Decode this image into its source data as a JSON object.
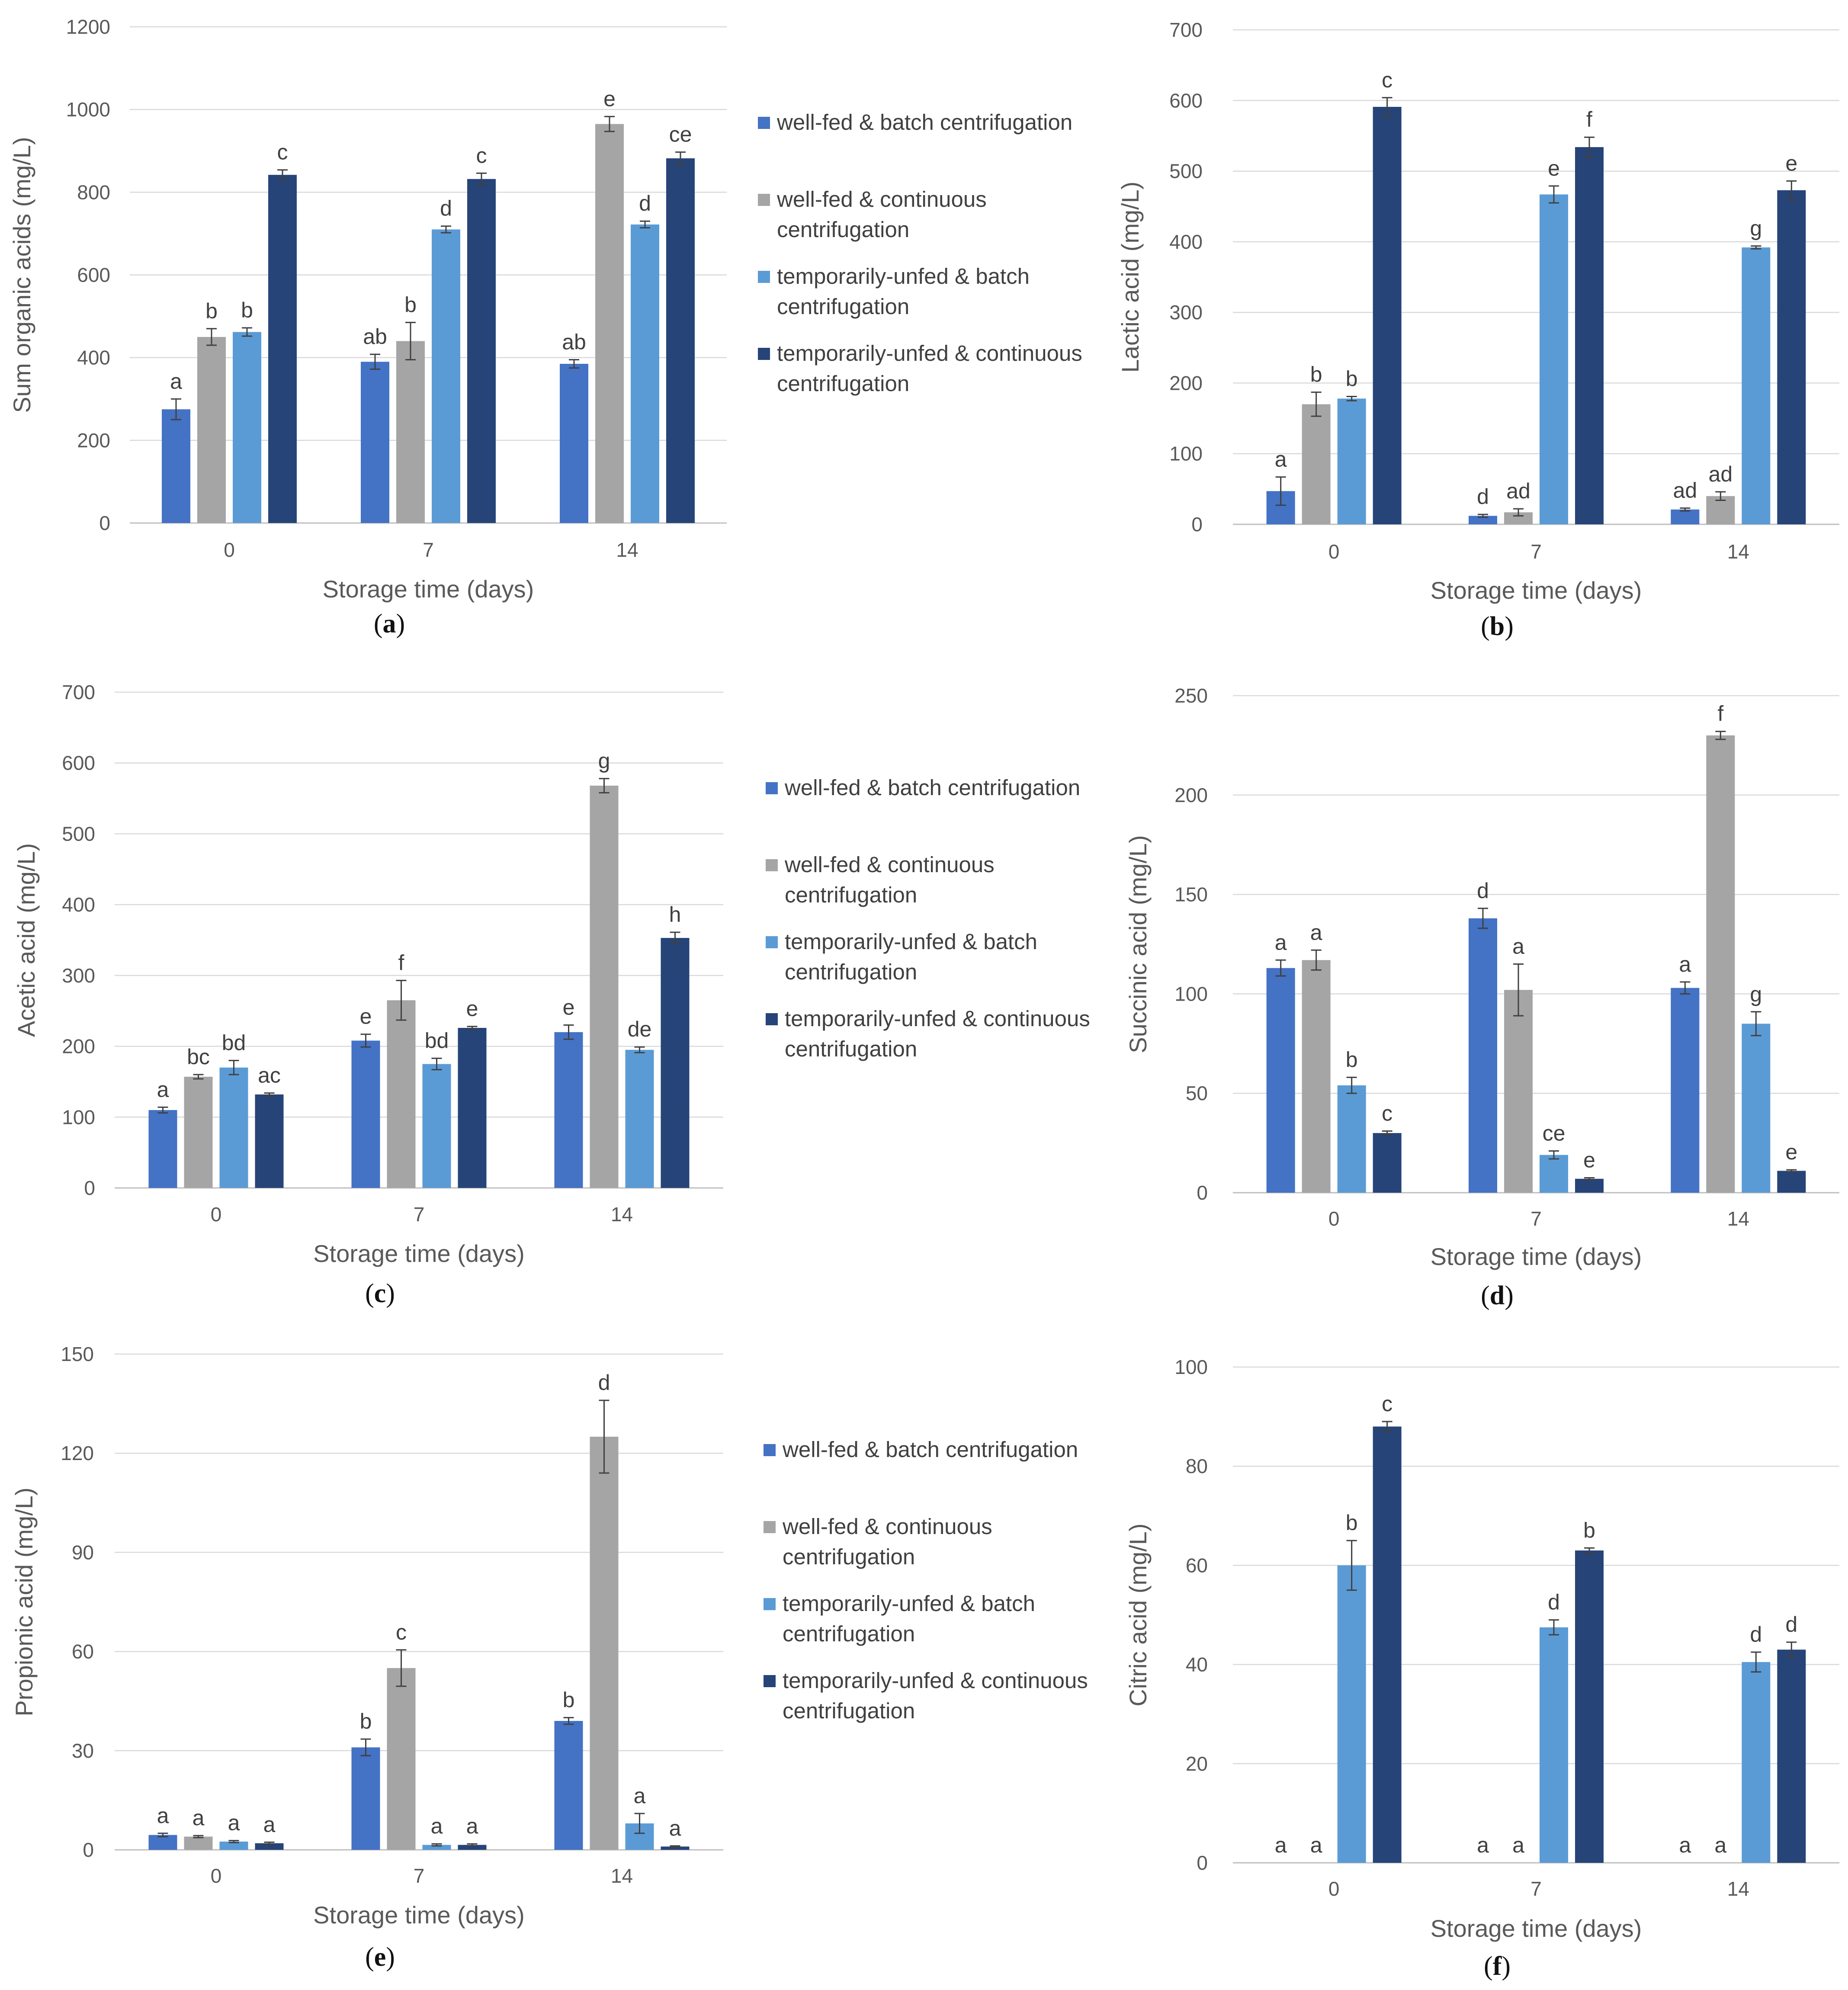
{
  "colors": {
    "well_fed_batch": "#4472C4",
    "well_fed_continuous": "#A5A5A5",
    "temp_unfed_batch": "#5B9BD5",
    "temp_unfed_continuous": "#264478",
    "grid": "#D9D9D9",
    "axis": "#BFBFBF",
    "error_bar": "#404040"
  },
  "chart_data": [
    {
      "id": "a",
      "type": "bar",
      "panel_label": "a",
      "categories": [
        "0",
        "7",
        "14"
      ],
      "xlabel": "Storage time (days)",
      "ylabel": "Sum organic  acids (mg/L)",
      "ylim": [
        0,
        1200
      ],
      "yticks": [
        0,
        200,
        400,
        600,
        800,
        1000,
        1200
      ],
      "series": [
        {
          "name": "well-fed & batch centrifugation",
          "values": [
            275,
            390,
            385
          ],
          "errors": [
            25,
            18,
            10
          ],
          "letters": [
            "a",
            "ab",
            "ab"
          ]
        },
        {
          "name": "well-fed & continuous centrifugation",
          "values": [
            450,
            440,
            965
          ],
          "errors": [
            20,
            45,
            18
          ],
          "letters": [
            "b",
            "b",
            "e"
          ]
        },
        {
          "name": "temporarily-unfed & batch centrifugation",
          "values": [
            462,
            710,
            722
          ],
          "errors": [
            10,
            8,
            8
          ],
          "letters": [
            "b",
            "d",
            "d"
          ]
        },
        {
          "name": "temporarily-unfed & continuous centrifugation",
          "values": [
            842,
            832,
            882
          ],
          "errors": [
            12,
            14,
            15
          ],
          "letters": [
            "c",
            "c",
            "ce"
          ]
        }
      ]
    },
    {
      "id": "b",
      "type": "bar",
      "panel_label": "b",
      "categories": [
        "0",
        "7",
        "14"
      ],
      "xlabel": "Storage time (days)",
      "ylabel": "Lactic acid (mg/L)",
      "ylim": [
        0,
        700
      ],
      "yticks": [
        0,
        100,
        200,
        300,
        400,
        500,
        600,
        700
      ],
      "series": [
        {
          "name": "well-fed & batch centrifugation",
          "values": [
            47,
            12,
            21
          ],
          "errors": [
            20,
            2,
            2
          ],
          "letters": [
            "a",
            "d",
            "ad"
          ]
        },
        {
          "name": "well-fed & continuous centrifugation",
          "values": [
            170,
            17,
            40
          ],
          "errors": [
            17,
            5,
            6
          ],
          "letters": [
            "b",
            "ad",
            "ad"
          ]
        },
        {
          "name": "temporarily-unfed & batch centrifugation",
          "values": [
            178,
            467,
            392
          ],
          "errors": [
            3,
            12,
            2
          ],
          "letters": [
            "b",
            "e",
            "g"
          ]
        },
        {
          "name": "temporarily-unfed & continuous centrifugation",
          "values": [
            591,
            534,
            473
          ],
          "errors": [
            13,
            14,
            13
          ],
          "letters": [
            "c",
            "f",
            "e"
          ]
        }
      ]
    },
    {
      "id": "c",
      "type": "bar",
      "panel_label": "c",
      "categories": [
        "0",
        "7",
        "14"
      ],
      "xlabel": "Storage time (days)",
      "ylabel": "Acetic acid (mg/L)",
      "ylim": [
        0,
        700
      ],
      "yticks": [
        0,
        100,
        200,
        300,
        400,
        500,
        600,
        700
      ],
      "series": [
        {
          "name": "well-fed & batch centrifugation",
          "values": [
            110,
            208,
            220
          ],
          "errors": [
            4,
            9,
            10
          ],
          "letters": [
            "a",
            "e",
            "e"
          ]
        },
        {
          "name": "well-fed & continuous centrifugation",
          "values": [
            157,
            265,
            568
          ],
          "errors": [
            3,
            28,
            10
          ],
          "letters": [
            "bc",
            "f",
            "g"
          ]
        },
        {
          "name": "temporarily-unfed & batch centrifugation",
          "values": [
            170,
            175,
            195
          ],
          "errors": [
            10,
            8,
            4
          ],
          "letters": [
            "bd",
            "bd",
            "de"
          ]
        },
        {
          "name": "temporarily-unfed & continuous centrifugation",
          "values": [
            132,
            226,
            353
          ],
          "errors": [
            2,
            2,
            8
          ],
          "letters": [
            "ac",
            "e",
            "h"
          ]
        }
      ]
    },
    {
      "id": "d",
      "type": "bar",
      "panel_label": "d",
      "categories": [
        "0",
        "7",
        "14"
      ],
      "xlabel": "Storage time (days)",
      "ylabel": "Succinic acid (mg/L)",
      "ylim": [
        0,
        250
      ],
      "yticks": [
        0,
        50,
        100,
        150,
        200,
        250
      ],
      "series": [
        {
          "name": "well-fed & batch centrifugation",
          "values": [
            113,
            138,
            103
          ],
          "errors": [
            4,
            5,
            3
          ],
          "letters": [
            "a",
            "d",
            "a"
          ]
        },
        {
          "name": "well-fed & continuous centrifugation",
          "values": [
            117,
            102,
            230
          ],
          "errors": [
            5,
            13,
            2
          ],
          "letters": [
            "a",
            "a",
            "f"
          ]
        },
        {
          "name": "temporarily-unfed & batch centrifugation",
          "values": [
            54,
            19,
            85
          ],
          "errors": [
            4,
            2,
            6
          ],
          "letters": [
            "b",
            "ce",
            "g"
          ]
        },
        {
          "name": "temporarily-unfed & continuous centrifugation",
          "values": [
            30,
            7,
            11
          ],
          "errors": [
            1,
            0.5,
            0.5
          ],
          "letters": [
            "c",
            "e",
            "e"
          ]
        }
      ]
    },
    {
      "id": "e",
      "type": "bar",
      "panel_label": "e",
      "categories": [
        "0",
        "7",
        "14"
      ],
      "xlabel": "Storage time (days)",
      "ylabel": "Propionic acid (mg/L)",
      "ylim": [
        0,
        150
      ],
      "yticks": [
        0,
        30,
        60,
        90,
        120,
        150
      ],
      "series": [
        {
          "name": "well-fed & batch centrifugation",
          "values": [
            4.5,
            31,
            39
          ],
          "errors": [
            0.5,
            2.5,
            1
          ],
          "letters": [
            "a",
            "b",
            "b"
          ]
        },
        {
          "name": "well-fed & continuous centrifugation",
          "values": [
            4,
            55,
            125
          ],
          "errors": [
            0.3,
            5.5,
            11
          ],
          "letters": [
            "a",
            "c",
            "d"
          ]
        },
        {
          "name": "temporarily-unfed & batch centrifugation",
          "values": [
            2.5,
            1.5,
            8
          ],
          "errors": [
            0.3,
            0.3,
            3
          ],
          "letters": [
            "a",
            "a",
            "a"
          ]
        },
        {
          "name": "temporarily-unfed & continuous centrifugation",
          "values": [
            2,
            1.5,
            1
          ],
          "errors": [
            0.3,
            0.3,
            0.2
          ],
          "letters": [
            "a",
            "a",
            "a"
          ]
        }
      ]
    },
    {
      "id": "f",
      "type": "bar",
      "panel_label": "f",
      "categories": [
        "0",
        "7",
        "14"
      ],
      "xlabel": "Storage time (days)",
      "ylabel": "Citric acid (mg/L)",
      "ylim": [
        0,
        100
      ],
      "yticks": [
        0,
        20,
        40,
        60,
        80,
        100
      ],
      "series": [
        {
          "name": "well-fed & batch centrifugation",
          "values": [
            0,
            0,
            0
          ],
          "errors": [
            0,
            0,
            0
          ],
          "letters": [
            "a",
            "a",
            "a"
          ]
        },
        {
          "name": "well-fed & continuous centrifugation",
          "values": [
            0,
            0,
            0
          ],
          "errors": [
            0,
            0,
            0
          ],
          "letters": [
            "a",
            "a",
            "a"
          ]
        },
        {
          "name": "temporarily-unfed & batch centrifugation",
          "values": [
            60,
            47.5,
            40.5
          ],
          "errors": [
            5,
            1.5,
            2
          ],
          "letters": [
            "b",
            "d",
            "d"
          ]
        },
        {
          "name": "temporarily-unfed & continuous centrifugation",
          "values": [
            88,
            63,
            43
          ],
          "errors": [
            1,
            0.5,
            1.5
          ],
          "letters": [
            "c",
            "b",
            "d"
          ]
        }
      ]
    }
  ],
  "legend": {
    "items": [
      {
        "line1": "well-fed & batch centrifugation",
        "line2": ""
      },
      {
        "line1": "well-fed & continuous",
        "line2": "centrifugation"
      },
      {
        "line1": "temporarily-unfed & batch",
        "line2": "centrifugation"
      },
      {
        "line1": "temporarily-unfed & continuous",
        "line2": "centrifugation"
      }
    ]
  }
}
